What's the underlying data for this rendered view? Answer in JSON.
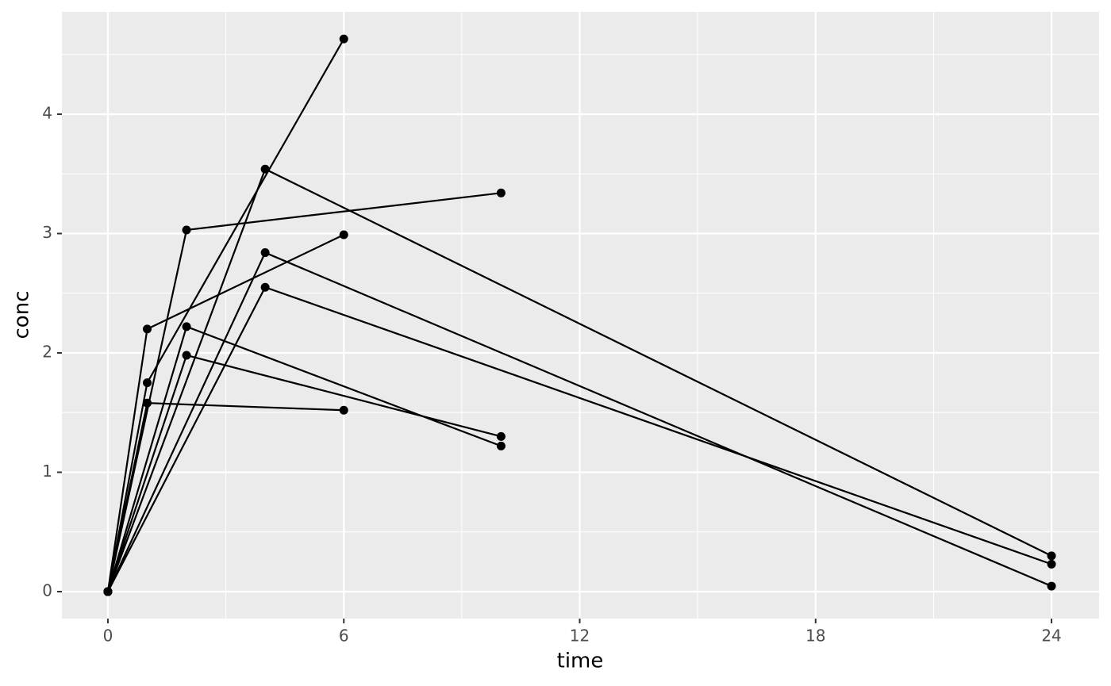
{
  "chart_data": {
    "type": "line",
    "x_label": "time",
    "y_label": "conc",
    "xlim": [
      -1.17,
      25.21
    ],
    "ylim": [
      -0.226,
      4.857
    ],
    "xticks": [
      0,
      6,
      12,
      18,
      24
    ],
    "yticks": [
      0,
      1,
      2,
      3,
      4
    ],
    "minor_xticks": [
      3,
      9,
      15,
      21
    ],
    "minor_yticks": [
      0.5,
      1.5,
      2.5,
      3.5,
      4.5
    ],
    "grid": true,
    "background": "#ebebeb",
    "grid_color": "#ffffff",
    "series": [
      {
        "color": "#000000",
        "x": [
          0,
          1,
          6
        ],
        "values": [
          0,
          1.75,
          4.63
        ]
      },
      {
        "color": "#000000",
        "x": [
          0,
          1,
          6
        ],
        "values": [
          0,
          2.2,
          2.99
        ]
      },
      {
        "color": "#000000",
        "x": [
          0,
          1,
          6
        ],
        "values": [
          0,
          1.58,
          1.52
        ]
      },
      {
        "color": "#000000",
        "x": [
          0,
          2,
          10
        ],
        "values": [
          0,
          3.03,
          3.34
        ]
      },
      {
        "color": "#000000",
        "x": [
          0,
          2,
          10
        ],
        "values": [
          0,
          2.22,
          1.22
        ]
      },
      {
        "color": "#000000",
        "x": [
          0,
          2,
          10
        ],
        "values": [
          0,
          1.98,
          1.3
        ]
      },
      {
        "color": "#000000",
        "x": [
          0,
          4,
          24
        ],
        "values": [
          0,
          3.54,
          0.3
        ]
      },
      {
        "color": "#000000",
        "x": [
          0,
          4,
          24
        ],
        "values": [
          0,
          2.84,
          0.046
        ]
      },
      {
        "color": "#000000",
        "x": [
          0,
          4,
          24
        ],
        "values": [
          0,
          2.55,
          0.23
        ]
      }
    ]
  }
}
